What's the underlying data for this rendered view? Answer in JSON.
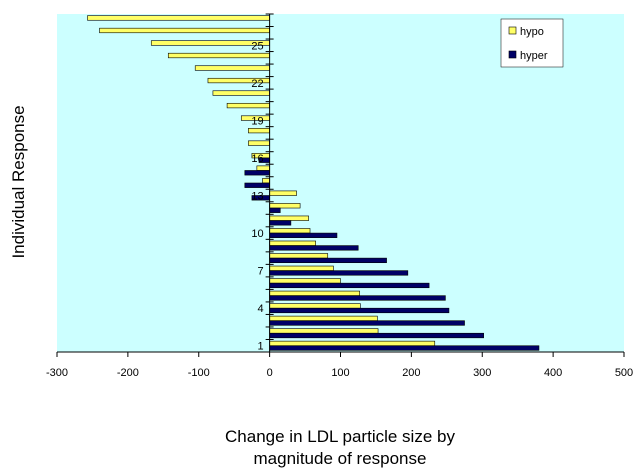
{
  "chart_data": {
    "type": "bar",
    "orientation": "horizontal",
    "xlabel_lines": [
      "Change in LDL particle size by",
      "magnitude of response"
    ],
    "ylabel": "Individual Response",
    "xlim": [
      -300,
      500
    ],
    "xticks": [
      -300,
      -200,
      -100,
      0,
      100,
      200,
      300,
      400,
      500
    ],
    "yticks": [
      "1",
      "4",
      "7",
      "10",
      "13",
      "16",
      "19",
      "22",
      "25"
    ],
    "ytick_rows": [
      1,
      4,
      7,
      10,
      13,
      16,
      19,
      22,
      25
    ],
    "n_rows": 27,
    "plot_background": "#ccffff",
    "legend_position": "top-right",
    "series": [
      {
        "name": "hypo",
        "color": "#ffff66",
        "values": [
          233,
          153,
          152,
          128,
          127,
          100,
          90,
          82,
          65,
          57,
          55,
          43,
          38,
          -10,
          -18,
          -25,
          -30,
          -30,
          -40,
          -60,
          -80,
          -87,
          -105,
          -143,
          -167,
          -240,
          -257
        ]
      },
      {
        "name": "hyper",
        "color": "#000066",
        "values": [
          380,
          302,
          275,
          253,
          248,
          225,
          195,
          165,
          125,
          95,
          30,
          15,
          -25,
          -35,
          -35,
          -15,
          0,
          0,
          0,
          0,
          0,
          0,
          0,
          0,
          0,
          0,
          0
        ]
      }
    ]
  }
}
